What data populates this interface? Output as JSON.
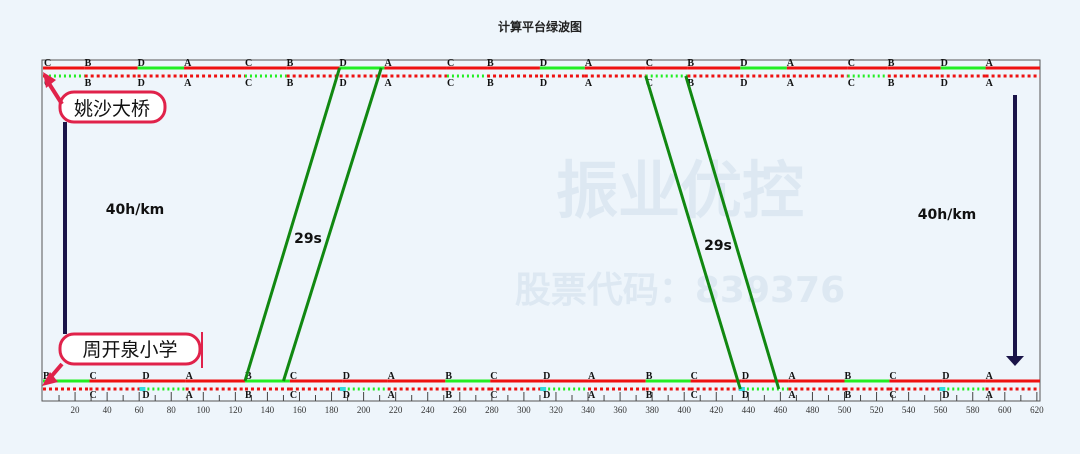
{
  "title": "计算平台绿波图",
  "watermark": {
    "line1": "振业优控",
    "line2": "股票代码：839376"
  },
  "colors": {
    "red": "#ee1111",
    "green": "#22ee22",
    "band": "#118811",
    "arrow": "#1a1448",
    "station_box": "#e0224a",
    "plot_border": "#555555"
  },
  "x_axis": {
    "min": 0,
    "max": 620,
    "label_step": 20,
    "minor_step": 10,
    "tick_labels": [
      "20",
      "40",
      "60",
      "80",
      "100",
      "120",
      "140",
      "160",
      "180",
      "200",
      "220",
      "240",
      "260",
      "280",
      "300",
      "320",
      "340",
      "360",
      "380",
      "400",
      "420",
      "440",
      "460",
      "480",
      "500",
      "520",
      "540",
      "560",
      "580",
      "600",
      "620"
    ]
  },
  "stations": [
    {
      "name": "姚沙大桥",
      "position": "top",
      "solid_phases": [
        [
          "C",
          0.6
        ],
        [
          "B",
          26
        ],
        [
          "D",
          59
        ],
        [
          "A",
          88
        ],
        [
          "C",
          126
        ],
        [
          "B",
          152
        ],
        [
          "D",
          185
        ],
        [
          "A",
          213
        ],
        [
          "C",
          252
        ],
        [
          "B",
          277
        ],
        [
          "D",
          310
        ],
        [
          "A",
          338
        ],
        [
          "C",
          376
        ],
        [
          "B",
          402
        ],
        [
          "D",
          435
        ],
        [
          "A",
          464
        ],
        [
          "C",
          502
        ],
        [
          "B",
          527
        ],
        [
          "D",
          560
        ],
        [
          "A",
          588
        ]
      ],
      "solid_green_from": "D",
      "solid_green_to": "A",
      "dotted_phases": [
        [
          "C",
          0.6
        ],
        [
          "B",
          26
        ],
        [
          "D",
          59
        ],
        [
          "A",
          88
        ],
        [
          "C",
          126
        ],
        [
          "B",
          152
        ],
        [
          "D",
          185
        ],
        [
          "A",
          213
        ],
        [
          "C",
          252
        ],
        [
          "B",
          277
        ],
        [
          "D",
          310
        ],
        [
          "A",
          338
        ],
        [
          "C",
          376
        ],
        [
          "B",
          402
        ],
        [
          "D",
          435
        ],
        [
          "A",
          464
        ],
        [
          "C",
          502
        ],
        [
          "B",
          527
        ],
        [
          "D",
          560
        ],
        [
          "A",
          588
        ]
      ],
      "dotted_green_from": "C",
      "dotted_green_to": "B"
    },
    {
      "name": "周开泉小学",
      "position": "bottom",
      "solid_phases": [
        [
          "B",
          0
        ],
        [
          "C",
          29
        ],
        [
          "D",
          62
        ],
        [
          "A",
          89
        ],
        [
          "B",
          126
        ],
        [
          "C",
          154
        ],
        [
          "D",
          187
        ],
        [
          "A",
          215
        ],
        [
          "B",
          251
        ],
        [
          "C",
          279
        ],
        [
          "D",
          312
        ],
        [
          "A",
          340
        ],
        [
          "B",
          376
        ],
        [
          "C",
          404
        ],
        [
          "D",
          436
        ],
        [
          "A",
          465
        ],
        [
          "B",
          500
        ],
        [
          "C",
          528
        ],
        [
          "D",
          561
        ],
        [
          "A",
          588
        ]
      ],
      "solid_green_from": "B",
      "solid_green_to": "C",
      "dotted_phases": [
        [
          "C",
          29
        ],
        [
          "D",
          62
        ],
        [
          "A",
          89
        ],
        [
          "B",
          126
        ],
        [
          "C",
          154
        ],
        [
          "D",
          187
        ],
        [
          "A",
          215
        ],
        [
          "B",
          251
        ],
        [
          "C",
          279
        ],
        [
          "D",
          312
        ],
        [
          "A",
          340
        ],
        [
          "B",
          376
        ],
        [
          "C",
          404
        ],
        [
          "D",
          436
        ],
        [
          "A",
          465
        ],
        [
          "B",
          500
        ],
        [
          "C",
          528
        ],
        [
          "D",
          561
        ],
        [
          "A",
          588
        ]
      ],
      "dotted_green_from": "D",
      "dotted_green_to": "A"
    }
  ],
  "bands": [
    {
      "direction": "up",
      "bandwidth_label": "29s",
      "from": [
        126,
        150
      ],
      "to": [
        185,
        211
      ]
    },
    {
      "direction": "down",
      "bandwidth_label": "29s",
      "from": [
        376,
        401
      ],
      "to": [
        435,
        459
      ]
    }
  ],
  "speeds": {
    "up_label": "40h/km",
    "down_label": "40h/km"
  }
}
